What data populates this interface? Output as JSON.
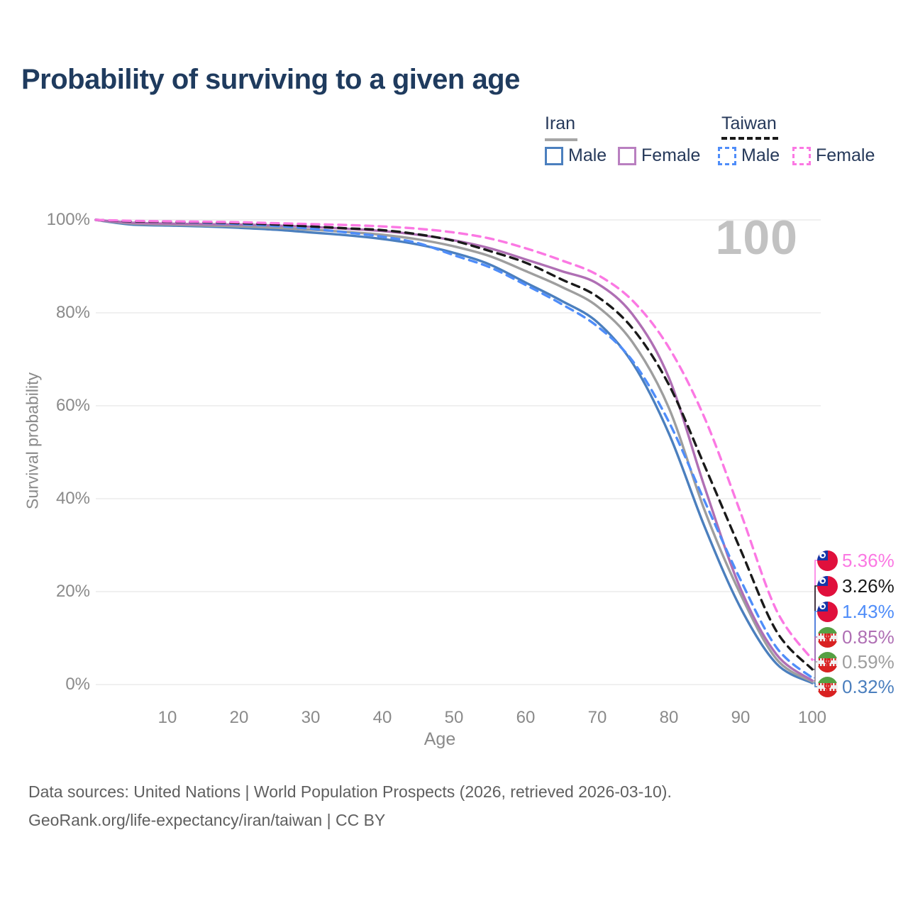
{
  "header": {
    "title": "Probability of surviving to a given age"
  },
  "legend": {
    "groups": [
      {
        "country": "Iran",
        "line_style": "solid",
        "underline_color": "#a6a6a6",
        "items": [
          {
            "label": "Male",
            "color": "#4b7fbe"
          },
          {
            "label": "Female",
            "color": "#b97fc0"
          }
        ]
      },
      {
        "country": "Taiwan",
        "line_style": "dashed",
        "underline_color": "#1a1a1a",
        "items": [
          {
            "label": "Male",
            "color": "#4f8df9"
          },
          {
            "label": "Female",
            "color": "#fb78e3"
          }
        ]
      }
    ]
  },
  "watermark": "100",
  "chart_data": {
    "type": "line",
    "title": "Probability of surviving to a given age",
    "xlabel": "Age",
    "ylabel": "Survival probability",
    "xlim": [
      0,
      100
    ],
    "ylim": [
      0,
      100
    ],
    "grid": "horizontal",
    "legend_position": "top-right",
    "x_ticks": [
      10,
      20,
      30,
      40,
      50,
      60,
      70,
      80,
      90,
      100
    ],
    "y_ticks": [
      100,
      80,
      60,
      40,
      20,
      0
    ],
    "y_tick_labels": [
      "100%",
      "80%",
      "60%",
      "40%",
      "20%",
      "0%"
    ],
    "x": [
      0,
      5,
      10,
      15,
      20,
      25,
      30,
      35,
      40,
      45,
      50,
      55,
      60,
      65,
      70,
      75,
      80,
      85,
      90,
      95,
      100
    ],
    "series": [
      {
        "name": "Taiwan Female",
        "country": "Taiwan",
        "sex": "Female",
        "color": "#fb78e3",
        "dash": true,
        "end_label": "5.36%",
        "values": [
          100,
          99.8,
          99.7,
          99.6,
          99.5,
          99.3,
          99.1,
          98.9,
          98.6,
          98.1,
          97.3,
          96.0,
          93.9,
          91.3,
          88.2,
          82.5,
          72.5,
          57.3,
          37.0,
          16.0,
          5.36
        ]
      },
      {
        "name": "Taiwan Both sexes",
        "country": "Taiwan",
        "sex": "All",
        "color": "#1a1a1a",
        "dash": true,
        "end_label": "3.26%",
        "values": [
          100,
          99.7,
          99.6,
          99.5,
          99.3,
          99.0,
          98.6,
          98.2,
          97.8,
          96.9,
          95.5,
          93.3,
          90.8,
          87.2,
          83.5,
          76.5,
          64.5,
          47.0,
          29.0,
          11.5,
          3.26
        ]
      },
      {
        "name": "Taiwan Male",
        "country": "Taiwan",
        "sex": "Male",
        "color": "#4f8df9",
        "dash": true,
        "end_label": "1.43%",
        "values": [
          100,
          99.7,
          99.6,
          99.4,
          99.1,
          98.7,
          98.1,
          97.3,
          96.4,
          95.0,
          92.4,
          89.8,
          86.0,
          81.9,
          77.1,
          69.5,
          56.5,
          39.4,
          22.5,
          8.0,
          1.43
        ]
      },
      {
        "name": "Iran Female",
        "country": "Iran",
        "sex": "Female",
        "color": "#af6fb4",
        "dash": false,
        "end_label": "0.85%",
        "values": [
          100,
          99.4,
          99.2,
          99.1,
          99.0,
          98.8,
          98.5,
          98.1,
          97.6,
          96.8,
          95.6,
          93.9,
          91.5,
          89.0,
          86.3,
          79.5,
          66.0,
          42.4,
          20.6,
          6.5,
          0.85
        ]
      },
      {
        "name": "Iran Both sexes",
        "country": "Iran",
        "sex": "All",
        "color": "#9e9e9e",
        "dash": false,
        "end_label": "0.59%",
        "values": [
          100,
          99.2,
          99.0,
          98.8,
          98.6,
          98.3,
          97.9,
          97.4,
          96.8,
          95.8,
          94.3,
          92.2,
          89.0,
          85.6,
          81.4,
          73.5,
          59.5,
          37.4,
          19.4,
          5.5,
          0.59
        ]
      },
      {
        "name": "Iran Male",
        "country": "Iran",
        "sex": "Male",
        "color": "#4b7fbe",
        "dash": false,
        "end_label": "0.32%",
        "values": [
          100,
          99.0,
          98.8,
          98.6,
          98.3,
          97.9,
          97.3,
          96.7,
          95.9,
          94.7,
          92.9,
          90.4,
          86.5,
          82.6,
          78.0,
          69.0,
          54.0,
          33.9,
          16.5,
          4.5,
          0.32
        ]
      }
    ]
  },
  "footer": {
    "line1": "Data sources: United Nations | World Population Prospects (2026, retrieved 2026-03-10).",
    "line2": "GeoRank.org/life-expectancy/iran/taiwan | CC BY"
  }
}
